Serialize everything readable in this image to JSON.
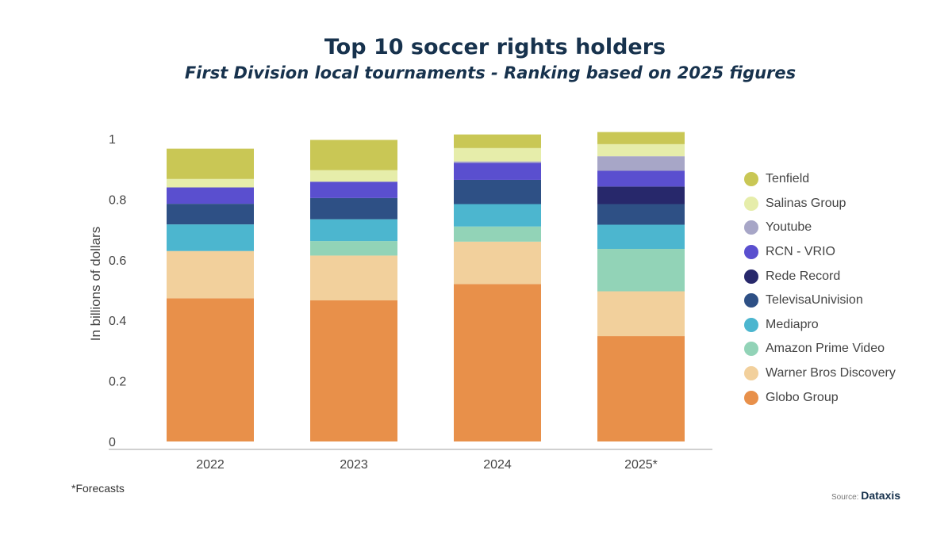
{
  "note": "*Forecasts",
  "source": {
    "label": "Source:",
    "brand": "Dataxis"
  },
  "chart_data": {
    "type": "bar",
    "stacked": true,
    "title": "Top 10 soccer rights holders",
    "subtitle": "First Division local tournaments - Ranking based on 2025 figures",
    "xlabel": "",
    "ylabel": "In billions of dollars",
    "ylim": [
      0,
      1
    ],
    "yticks": [
      0,
      0.2,
      0.4,
      0.6,
      0.8,
      1
    ],
    "grid": false,
    "legend_position": "right",
    "categories": [
      "2022",
      "2023",
      "2024",
      "2025*"
    ],
    "series": [
      {
        "name": "Globo Group",
        "color": "#e8904a",
        "values": [
          0.473,
          0.466,
          0.52,
          0.348
        ]
      },
      {
        "name": "Warner Bros Discovery",
        "color": "#f2d09c",
        "values": [
          0.156,
          0.148,
          0.14,
          0.148
        ]
      },
      {
        "name": "Amazon Prime Video",
        "color": "#92d3b7",
        "values": [
          0,
          0.048,
          0.05,
          0.14
        ]
      },
      {
        "name": "Mediapro",
        "color": "#4cb6cf",
        "values": [
          0.088,
          0.072,
          0.074,
          0.08
        ]
      },
      {
        "name": "TelevisaUnivision",
        "color": "#2e5085",
        "values": [
          0.068,
          0.07,
          0.08,
          0.068
        ]
      },
      {
        "name": "Rede Record",
        "color": "#27286b",
        "values": [
          0,
          0,
          0,
          0.058
        ]
      },
      {
        "name": "RCN - VRIO",
        "color": "#5a4fcf",
        "values": [
          0.054,
          0.054,
          0.056,
          0.052
        ]
      },
      {
        "name": "Youtube",
        "color": "#a7a6c7",
        "values": [
          0,
          0,
          0.005,
          0.048
        ]
      },
      {
        "name": "Salinas Group",
        "color": "#e6edaa",
        "values": [
          0.028,
          0.038,
          0.044,
          0.04
        ]
      },
      {
        "name": "Tenfield",
        "color": "#c9c755",
        "values": [
          0.1,
          0.1,
          0.045,
          0.04
        ]
      }
    ]
  }
}
